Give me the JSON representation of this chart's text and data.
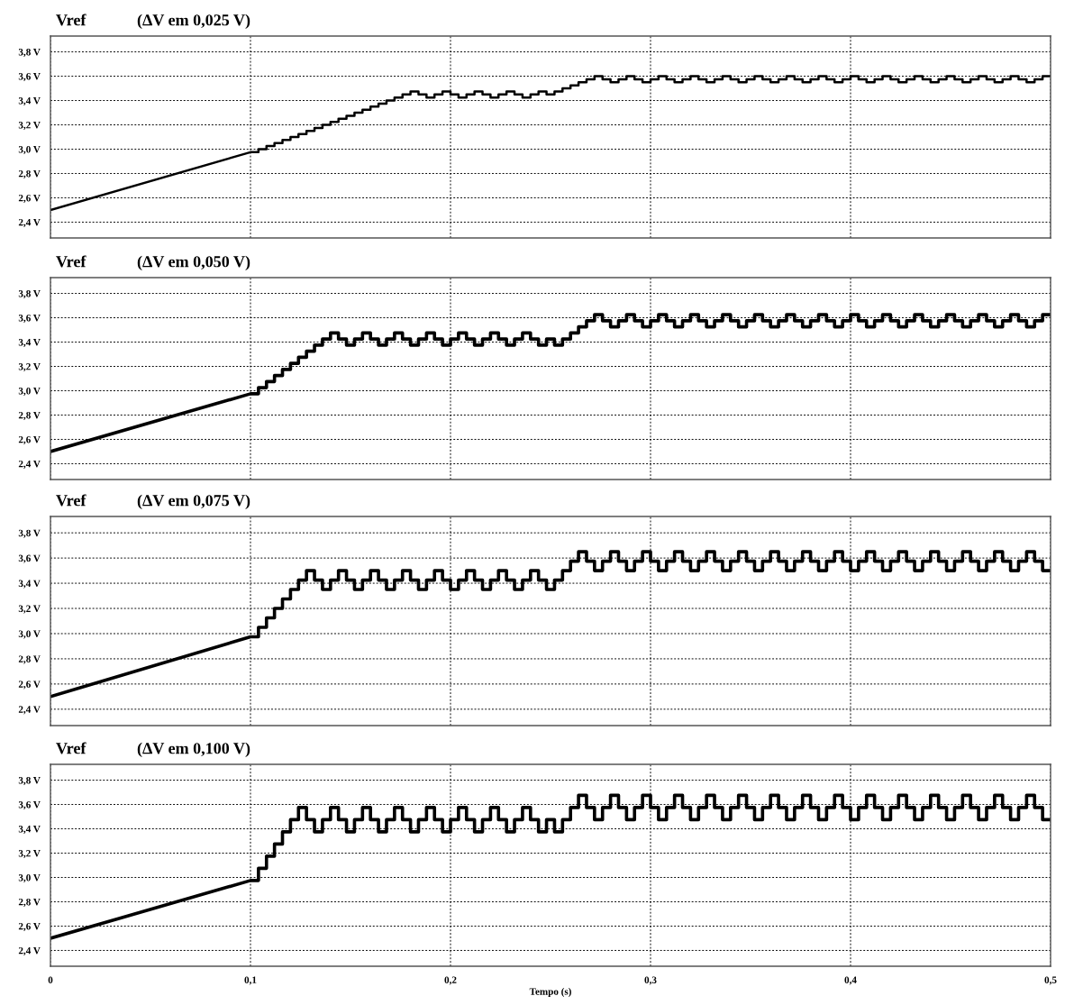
{
  "chart_data": [
    {
      "type": "line",
      "title": "Vref",
      "subtitle": "(ΔV em 0,025 V)",
      "xlim": [
        0,
        0.5
      ],
      "ylim": [
        2.27,
        3.93
      ],
      "grid": true,
      "tick_labels": "y",
      "xticks": [
        {
          "value": 0,
          "label": null
        },
        {
          "value": 0.1,
          "label": null
        },
        {
          "value": 0.2,
          "label": null
        },
        {
          "value": 0.3,
          "label": null
        },
        {
          "value": 0.4,
          "label": null
        },
        {
          "value": 0.5,
          "label": null
        }
      ],
      "yticks": [
        {
          "value": 2.4,
          "label": "2,4 V"
        },
        {
          "value": 2.6,
          "label": "2,6 V"
        },
        {
          "value": 2.8,
          "label": "2,8 V"
        },
        {
          "value": 3.0,
          "label": "3,0 V"
        },
        {
          "value": 3.2,
          "label": "3,2 V"
        },
        {
          "value": 3.4,
          "label": "3,4 V"
        },
        {
          "value": 3.6,
          "label": "3,6 V"
        },
        {
          "value": 3.8,
          "label": "3,8 V"
        }
      ],
      "x": [
        0,
        0.1,
        0.104,
        0.104,
        0.108,
        0.108,
        0.112,
        0.112,
        0.116,
        0.116,
        0.12,
        0.12,
        0.124,
        0.124,
        0.128,
        0.128,
        0.132,
        0.132,
        0.136,
        0.136,
        0.14,
        0.14,
        0.144,
        0.144,
        0.148,
        0.148,
        0.152,
        0.152,
        0.156,
        0.156,
        0.16,
        0.16,
        0.164,
        0.164,
        0.168,
        0.168,
        0.172,
        0.172,
        0.176,
        0.176,
        0.18,
        0.18,
        0.184,
        0.184,
        0.188,
        0.188,
        0.192,
        0.192,
        0.196,
        0.196,
        0.2,
        0.2,
        0.204,
        0.204,
        0.208,
        0.208,
        0.212,
        0.212,
        0.216,
        0.216,
        0.22,
        0.22,
        0.224,
        0.224,
        0.228,
        0.228,
        0.232,
        0.232,
        0.236,
        0.236,
        0.24,
        0.24,
        0.244,
        0.244,
        0.248,
        0.248,
        0.252,
        0.252,
        0.256,
        0.256,
        0.26,
        0.26,
        0.264,
        0.264,
        0.268,
        0.268,
        0.272,
        0.272,
        0.276,
        0.276,
        0.28,
        0.28,
        0.284,
        0.284,
        0.288,
        0.288,
        0.292,
        0.292,
        0.296,
        0.296,
        0.3,
        0.3,
        0.304,
        0.304,
        0.308,
        0.308,
        0.312,
        0.312,
        0.316,
        0.316,
        0.32,
        0.32,
        0.324,
        0.324,
        0.328,
        0.328,
        0.332,
        0.332,
        0.336,
        0.336,
        0.34,
        0.34,
        0.344,
        0.344,
        0.348,
        0.348,
        0.352,
        0.352,
        0.356,
        0.356,
        0.36,
        0.36,
        0.364,
        0.364,
        0.368,
        0.368,
        0.372,
        0.372,
        0.376,
        0.376,
        0.38,
        0.38,
        0.384,
        0.384,
        0.388,
        0.388,
        0.392,
        0.392,
        0.396,
        0.396,
        0.4,
        0.4,
        0.404,
        0.404,
        0.408,
        0.408,
        0.412,
        0.412,
        0.416,
        0.416,
        0.42,
        0.42,
        0.424,
        0.424,
        0.428,
        0.428,
        0.432,
        0.432,
        0.436,
        0.436,
        0.44,
        0.44,
        0.444,
        0.444,
        0.448,
        0.448,
        0.452,
        0.452,
        0.456,
        0.456,
        0.46,
        0.46,
        0.464,
        0.464,
        0.468,
        0.468,
        0.472,
        0.472,
        0.476,
        0.476,
        0.48,
        0.48,
        0.484,
        0.484,
        0.488,
        0.488,
        0.492,
        0.492,
        0.496,
        0.496,
        0.5
      ],
      "series": [
        {
          "color": "#000000",
          "values": [
            2.5,
            2.975,
            2.975,
            3.0,
            3.0,
            3.025,
            3.025,
            3.05,
            3.05,
            3.075,
            3.075,
            3.1,
            3.1,
            3.125,
            3.125,
            3.15,
            3.15,
            3.175,
            3.175,
            3.2,
            3.2,
            3.225,
            3.225,
            3.25,
            3.25,
            3.275,
            3.275,
            3.3,
            3.3,
            3.325,
            3.325,
            3.35,
            3.35,
            3.375,
            3.375,
            3.4,
            3.4,
            3.425,
            3.425,
            3.45,
            3.45,
            3.475,
            3.475,
            3.45,
            3.45,
            3.425,
            3.425,
            3.45,
            3.45,
            3.475,
            3.475,
            3.45,
            3.45,
            3.425,
            3.425,
            3.45,
            3.45,
            3.475,
            3.475,
            3.45,
            3.45,
            3.425,
            3.425,
            3.45,
            3.45,
            3.475,
            3.475,
            3.45,
            3.45,
            3.425,
            3.425,
            3.45,
            3.45,
            3.475,
            3.475,
            3.45,
            3.45,
            3.475,
            3.475,
            3.5,
            3.5,
            3.525,
            3.525,
            3.55,
            3.55,
            3.575,
            3.575,
            3.6,
            3.6,
            3.575,
            3.575,
            3.55,
            3.55,
            3.575,
            3.575,
            3.6,
            3.6,
            3.575,
            3.575,
            3.55,
            3.55,
            3.575,
            3.575,
            3.6,
            3.6,
            3.575,
            3.575,
            3.55,
            3.55,
            3.575,
            3.575,
            3.6,
            3.6,
            3.575,
            3.575,
            3.55,
            3.55,
            3.575,
            3.575,
            3.6,
            3.6,
            3.575,
            3.575,
            3.55,
            3.55,
            3.575,
            3.575,
            3.6,
            3.6,
            3.575,
            3.575,
            3.55,
            3.55,
            3.575,
            3.575,
            3.6,
            3.6,
            3.575,
            3.575,
            3.55,
            3.55,
            3.575,
            3.575,
            3.6,
            3.6,
            3.575,
            3.575,
            3.55,
            3.55,
            3.575,
            3.575,
            3.6,
            3.6,
            3.575,
            3.575,
            3.55,
            3.55,
            3.575,
            3.575,
            3.6,
            3.6,
            3.575,
            3.575,
            3.55,
            3.55,
            3.575,
            3.575,
            3.6,
            3.6,
            3.575,
            3.575,
            3.55,
            3.55,
            3.575,
            3.575,
            3.6,
            3.6,
            3.575,
            3.575,
            3.55,
            3.55,
            3.575,
            3.575,
            3.6,
            3.6,
            3.575,
            3.575,
            3.55,
            3.55,
            3.575,
            3.575,
            3.6,
            3.6,
            3.575,
            3.575,
            3.55,
            3.55,
            3.575,
            3.575,
            3.6,
            3.6
          ]
        }
      ]
    },
    {
      "type": "line",
      "title": "Vref",
      "subtitle": "(ΔV em 0,050 V)",
      "xlim": [
        0,
        0.5
      ],
      "ylim": [
        2.27,
        3.93
      ],
      "grid": true,
      "tick_labels": "y",
      "xticks": [
        {
          "value": 0,
          "label": null
        },
        {
          "value": 0.1,
          "label": null
        },
        {
          "value": 0.2,
          "label": null
        },
        {
          "value": 0.3,
          "label": null
        },
        {
          "value": 0.4,
          "label": null
        },
        {
          "value": 0.5,
          "label": null
        }
      ],
      "yticks": [
        {
          "value": 2.4,
          "label": "2,4 V"
        },
        {
          "value": 2.6,
          "label": "2,6 V"
        },
        {
          "value": 2.8,
          "label": "2,8 V"
        },
        {
          "value": 3.0,
          "label": "3,0 V"
        },
        {
          "value": 3.2,
          "label": "3,2 V"
        },
        {
          "value": 3.4,
          "label": "3,4 V"
        },
        {
          "value": 3.6,
          "label": "3,6 V"
        },
        {
          "value": 3.8,
          "label": "3,8 V"
        }
      ],
      "x": [
        0,
        0.1,
        0.104,
        0.104,
        0.108,
        0.108,
        0.112,
        0.112,
        0.116,
        0.116,
        0.12,
        0.12,
        0.124,
        0.124,
        0.128,
        0.128,
        0.132,
        0.132,
        0.136,
        0.136,
        0.14,
        0.14,
        0.144,
        0.144,
        0.148,
        0.148,
        0.152,
        0.152,
        0.156,
        0.156,
        0.16,
        0.16,
        0.164,
        0.164,
        0.168,
        0.168,
        0.172,
        0.172,
        0.176,
        0.176,
        0.18,
        0.18,
        0.184,
        0.184,
        0.188,
        0.188,
        0.192,
        0.192,
        0.196,
        0.196,
        0.2,
        0.2,
        0.204,
        0.204,
        0.208,
        0.208,
        0.212,
        0.212,
        0.216,
        0.216,
        0.22,
        0.22,
        0.224,
        0.224,
        0.228,
        0.228,
        0.232,
        0.232,
        0.236,
        0.236,
        0.24,
        0.24,
        0.244,
        0.244,
        0.248,
        0.248,
        0.252,
        0.252,
        0.256,
        0.256,
        0.26,
        0.26,
        0.264,
        0.264,
        0.268,
        0.268,
        0.272,
        0.272,
        0.276,
        0.276,
        0.28,
        0.28,
        0.284,
        0.284,
        0.288,
        0.288,
        0.292,
        0.292,
        0.296,
        0.296,
        0.3,
        0.3,
        0.304,
        0.304,
        0.308,
        0.308,
        0.312,
        0.312,
        0.316,
        0.316,
        0.32,
        0.32,
        0.324,
        0.324,
        0.328,
        0.328,
        0.332,
        0.332,
        0.336,
        0.336,
        0.34,
        0.34,
        0.344,
        0.344,
        0.348,
        0.348,
        0.352,
        0.352,
        0.356,
        0.356,
        0.36,
        0.36,
        0.364,
        0.364,
        0.368,
        0.368,
        0.372,
        0.372,
        0.376,
        0.376,
        0.38,
        0.38,
        0.384,
        0.384,
        0.388,
        0.388,
        0.392,
        0.392,
        0.396,
        0.396,
        0.4,
        0.4,
        0.404,
        0.404,
        0.408,
        0.408,
        0.412,
        0.412,
        0.416,
        0.416,
        0.42,
        0.42,
        0.424,
        0.424,
        0.428,
        0.428,
        0.432,
        0.432,
        0.436,
        0.436,
        0.44,
        0.44,
        0.444,
        0.444,
        0.448,
        0.448,
        0.452,
        0.452,
        0.456,
        0.456,
        0.46,
        0.46,
        0.464,
        0.464,
        0.468,
        0.468,
        0.472,
        0.472,
        0.476,
        0.476,
        0.48,
        0.48,
        0.484,
        0.484,
        0.488,
        0.488,
        0.492,
        0.492,
        0.496,
        0.496,
        0.5
      ],
      "series": [
        {
          "color": "#000000",
          "values": [
            2.5,
            2.975,
            2.975,
            3.025,
            3.025,
            3.075,
            3.075,
            3.125,
            3.125,
            3.175,
            3.175,
            3.225,
            3.225,
            3.275,
            3.275,
            3.325,
            3.325,
            3.375,
            3.375,
            3.425,
            3.425,
            3.475,
            3.475,
            3.425,
            3.425,
            3.375,
            3.375,
            3.425,
            3.425,
            3.475,
            3.475,
            3.425,
            3.425,
            3.375,
            3.375,
            3.425,
            3.425,
            3.475,
            3.475,
            3.425,
            3.425,
            3.375,
            3.375,
            3.425,
            3.425,
            3.475,
            3.475,
            3.425,
            3.425,
            3.375,
            3.375,
            3.425,
            3.425,
            3.475,
            3.475,
            3.425,
            3.425,
            3.375,
            3.375,
            3.425,
            3.425,
            3.475,
            3.475,
            3.425,
            3.425,
            3.375,
            3.375,
            3.425,
            3.425,
            3.475,
            3.475,
            3.425,
            3.425,
            3.375,
            3.375,
            3.425,
            3.425,
            3.375,
            3.375,
            3.425,
            3.425,
            3.475,
            3.475,
            3.525,
            3.525,
            3.575,
            3.575,
            3.625,
            3.625,
            3.575,
            3.575,
            3.525,
            3.525,
            3.575,
            3.575,
            3.625,
            3.625,
            3.575,
            3.575,
            3.525,
            3.525,
            3.575,
            3.575,
            3.625,
            3.625,
            3.575,
            3.575,
            3.525,
            3.525,
            3.575,
            3.575,
            3.625,
            3.625,
            3.575,
            3.575,
            3.525,
            3.525,
            3.575,
            3.575,
            3.625,
            3.625,
            3.575,
            3.575,
            3.525,
            3.525,
            3.575,
            3.575,
            3.625,
            3.625,
            3.575,
            3.575,
            3.525,
            3.525,
            3.575,
            3.575,
            3.625,
            3.625,
            3.575,
            3.575,
            3.525,
            3.525,
            3.575,
            3.575,
            3.625,
            3.625,
            3.575,
            3.575,
            3.525,
            3.525,
            3.575,
            3.575,
            3.625,
            3.625,
            3.575,
            3.575,
            3.525,
            3.525,
            3.575,
            3.575,
            3.625,
            3.625,
            3.575,
            3.575,
            3.525,
            3.525,
            3.575,
            3.575,
            3.625,
            3.625,
            3.575,
            3.575,
            3.525,
            3.525,
            3.575,
            3.575,
            3.625,
            3.625,
            3.575,
            3.575,
            3.525,
            3.525,
            3.575,
            3.575,
            3.625,
            3.625,
            3.575,
            3.575,
            3.525,
            3.525,
            3.575,
            3.575,
            3.625,
            3.625,
            3.575,
            3.575,
            3.525,
            3.525,
            3.575,
            3.575,
            3.625,
            3.625
          ]
        }
      ]
    },
    {
      "type": "line",
      "title": "Vref",
      "subtitle": "(ΔV em 0,075 V)",
      "xlim": [
        0,
        0.5
      ],
      "ylim": [
        2.27,
        3.93
      ],
      "grid": true,
      "tick_labels": "y",
      "xticks": [
        {
          "value": 0,
          "label": null
        },
        {
          "value": 0.1,
          "label": null
        },
        {
          "value": 0.2,
          "label": null
        },
        {
          "value": 0.3,
          "label": null
        },
        {
          "value": 0.4,
          "label": null
        },
        {
          "value": 0.5,
          "label": null
        }
      ],
      "yticks": [
        {
          "value": 2.4,
          "label": "2,4 V"
        },
        {
          "value": 2.6,
          "label": "2,6 V"
        },
        {
          "value": 2.8,
          "label": "2,8 V"
        },
        {
          "value": 3.0,
          "label": "3,0 V"
        },
        {
          "value": 3.2,
          "label": "3,2 V"
        },
        {
          "value": 3.4,
          "label": "3,4 V"
        },
        {
          "value": 3.6,
          "label": "3,6 V"
        },
        {
          "value": 3.8,
          "label": "3,8 V"
        }
      ],
      "x": [
        0,
        0.1,
        0.104,
        0.104,
        0.108,
        0.108,
        0.112,
        0.112,
        0.116,
        0.116,
        0.12,
        0.12,
        0.124,
        0.124,
        0.128,
        0.128,
        0.132,
        0.132,
        0.136,
        0.136,
        0.14,
        0.14,
        0.144,
        0.144,
        0.148,
        0.148,
        0.152,
        0.152,
        0.156,
        0.156,
        0.16,
        0.16,
        0.164,
        0.164,
        0.168,
        0.168,
        0.172,
        0.172,
        0.176,
        0.176,
        0.18,
        0.18,
        0.184,
        0.184,
        0.188,
        0.188,
        0.192,
        0.192,
        0.196,
        0.196,
        0.2,
        0.2,
        0.204,
        0.204,
        0.208,
        0.208,
        0.212,
        0.212,
        0.216,
        0.216,
        0.22,
        0.22,
        0.224,
        0.224,
        0.228,
        0.228,
        0.232,
        0.232,
        0.236,
        0.236,
        0.24,
        0.24,
        0.244,
        0.244,
        0.248,
        0.248,
        0.252,
        0.252,
        0.256,
        0.256,
        0.26,
        0.26,
        0.264,
        0.264,
        0.268,
        0.268,
        0.272,
        0.272,
        0.276,
        0.276,
        0.28,
        0.28,
        0.284,
        0.284,
        0.288,
        0.288,
        0.292,
        0.292,
        0.296,
        0.296,
        0.3,
        0.3,
        0.304,
        0.304,
        0.308,
        0.308,
        0.312,
        0.312,
        0.316,
        0.316,
        0.32,
        0.32,
        0.324,
        0.324,
        0.328,
        0.328,
        0.332,
        0.332,
        0.336,
        0.336,
        0.34,
        0.34,
        0.344,
        0.344,
        0.348,
        0.348,
        0.352,
        0.352,
        0.356,
        0.356,
        0.36,
        0.36,
        0.364,
        0.364,
        0.368,
        0.368,
        0.372,
        0.372,
        0.376,
        0.376,
        0.38,
        0.38,
        0.384,
        0.384,
        0.388,
        0.388,
        0.392,
        0.392,
        0.396,
        0.396,
        0.4,
        0.4,
        0.404,
        0.404,
        0.408,
        0.408,
        0.412,
        0.412,
        0.416,
        0.416,
        0.42,
        0.42,
        0.424,
        0.424,
        0.428,
        0.428,
        0.432,
        0.432,
        0.436,
        0.436,
        0.44,
        0.44,
        0.444,
        0.444,
        0.448,
        0.448,
        0.452,
        0.452,
        0.456,
        0.456,
        0.46,
        0.46,
        0.464,
        0.464,
        0.468,
        0.468,
        0.472,
        0.472,
        0.476,
        0.476,
        0.48,
        0.48,
        0.484,
        0.484,
        0.488,
        0.488,
        0.492,
        0.492,
        0.496,
        0.496,
        0.5
      ],
      "series": [
        {
          "color": "#000000",
          "values": [
            2.5,
            2.975,
            2.975,
            3.05,
            3.05,
            3.125,
            3.125,
            3.2,
            3.2,
            3.275,
            3.275,
            3.35,
            3.35,
            3.425,
            3.425,
            3.5,
            3.5,
            3.425,
            3.425,
            3.35,
            3.35,
            3.425,
            3.425,
            3.5,
            3.5,
            3.425,
            3.425,
            3.35,
            3.35,
            3.425,
            3.425,
            3.5,
            3.5,
            3.425,
            3.425,
            3.35,
            3.35,
            3.425,
            3.425,
            3.5,
            3.5,
            3.425,
            3.425,
            3.35,
            3.35,
            3.425,
            3.425,
            3.5,
            3.5,
            3.425,
            3.425,
            3.35,
            3.35,
            3.425,
            3.425,
            3.5,
            3.5,
            3.425,
            3.425,
            3.35,
            3.35,
            3.425,
            3.425,
            3.5,
            3.5,
            3.425,
            3.425,
            3.35,
            3.35,
            3.425,
            3.425,
            3.5,
            3.5,
            3.425,
            3.425,
            3.35,
            3.35,
            3.425,
            3.425,
            3.5,
            3.5,
            3.575,
            3.575,
            3.65,
            3.65,
            3.575,
            3.575,
            3.5,
            3.5,
            3.575,
            3.575,
            3.65,
            3.65,
            3.575,
            3.575,
            3.5,
            3.5,
            3.575,
            3.575,
            3.65,
            3.65,
            3.575,
            3.575,
            3.5,
            3.5,
            3.575,
            3.575,
            3.65,
            3.65,
            3.575,
            3.575,
            3.5,
            3.5,
            3.575,
            3.575,
            3.65,
            3.65,
            3.575,
            3.575,
            3.5,
            3.5,
            3.575,
            3.575,
            3.65,
            3.65,
            3.575,
            3.575,
            3.5,
            3.5,
            3.575,
            3.575,
            3.65,
            3.65,
            3.575,
            3.575,
            3.5,
            3.5,
            3.575,
            3.575,
            3.65,
            3.65,
            3.575,
            3.575,
            3.5,
            3.5,
            3.575,
            3.575,
            3.65,
            3.65,
            3.575,
            3.575,
            3.5,
            3.5,
            3.575,
            3.575,
            3.65,
            3.65,
            3.575,
            3.575,
            3.5,
            3.5,
            3.575,
            3.575,
            3.65,
            3.65,
            3.575,
            3.575,
            3.5,
            3.5,
            3.575,
            3.575,
            3.65,
            3.65,
            3.575,
            3.575,
            3.5,
            3.5,
            3.575,
            3.575,
            3.65,
            3.65,
            3.575,
            3.575,
            3.5,
            3.5,
            3.575,
            3.575,
            3.65,
            3.65,
            3.575,
            3.575,
            3.5,
            3.5,
            3.575,
            3.575,
            3.65,
            3.65,
            3.575,
            3.575,
            3.5,
            3.5
          ]
        }
      ]
    },
    {
      "type": "line",
      "title": "Vref",
      "subtitle": "(ΔV em 0,100 V)",
      "xlabel": "Tempo (s)",
      "xlim": [
        0,
        0.5
      ],
      "ylim": [
        2.27,
        3.93
      ],
      "grid": true,
      "xticks": [
        {
          "value": 0,
          "label": "0"
        },
        {
          "value": 0.1,
          "label": "0,1"
        },
        {
          "value": 0.2,
          "label": "0,2"
        },
        {
          "value": 0.3,
          "label": "0,3"
        },
        {
          "value": 0.4,
          "label": "0,4"
        },
        {
          "value": 0.5,
          "label": "0,5"
        }
      ],
      "yticks": [
        {
          "value": 2.4,
          "label": "2,4 V"
        },
        {
          "value": 2.6,
          "label": "2,6 V"
        },
        {
          "value": 2.8,
          "label": "2,8 V"
        },
        {
          "value": 3.0,
          "label": "3,0 V"
        },
        {
          "value": 3.2,
          "label": "3,2 V"
        },
        {
          "value": 3.4,
          "label": "3,4 V"
        },
        {
          "value": 3.6,
          "label": "3,6 V"
        },
        {
          "value": 3.8,
          "label": "3,8 V"
        }
      ],
      "x": [
        0,
        0.1,
        0.104,
        0.104,
        0.108,
        0.108,
        0.112,
        0.112,
        0.116,
        0.116,
        0.12,
        0.12,
        0.124,
        0.124,
        0.128,
        0.128,
        0.132,
        0.132,
        0.136,
        0.136,
        0.14,
        0.14,
        0.144,
        0.144,
        0.148,
        0.148,
        0.152,
        0.152,
        0.156,
        0.156,
        0.16,
        0.16,
        0.164,
        0.164,
        0.168,
        0.168,
        0.172,
        0.172,
        0.176,
        0.176,
        0.18,
        0.18,
        0.184,
        0.184,
        0.188,
        0.188,
        0.192,
        0.192,
        0.196,
        0.196,
        0.2,
        0.2,
        0.204,
        0.204,
        0.208,
        0.208,
        0.212,
        0.212,
        0.216,
        0.216,
        0.22,
        0.22,
        0.224,
        0.224,
        0.228,
        0.228,
        0.232,
        0.232,
        0.236,
        0.236,
        0.24,
        0.24,
        0.244,
        0.244,
        0.248,
        0.248,
        0.252,
        0.252,
        0.256,
        0.256,
        0.26,
        0.26,
        0.264,
        0.264,
        0.268,
        0.268,
        0.272,
        0.272,
        0.276,
        0.276,
        0.28,
        0.28,
        0.284,
        0.284,
        0.288,
        0.288,
        0.292,
        0.292,
        0.296,
        0.296,
        0.3,
        0.3,
        0.304,
        0.304,
        0.308,
        0.308,
        0.312,
        0.312,
        0.316,
        0.316,
        0.32,
        0.32,
        0.324,
        0.324,
        0.328,
        0.328,
        0.332,
        0.332,
        0.336,
        0.336,
        0.34,
        0.34,
        0.344,
        0.344,
        0.348,
        0.348,
        0.352,
        0.352,
        0.356,
        0.356,
        0.36,
        0.36,
        0.364,
        0.364,
        0.368,
        0.368,
        0.372,
        0.372,
        0.376,
        0.376,
        0.38,
        0.38,
        0.384,
        0.384,
        0.388,
        0.388,
        0.392,
        0.392,
        0.396,
        0.396,
        0.4,
        0.4,
        0.404,
        0.404,
        0.408,
        0.408,
        0.412,
        0.412,
        0.416,
        0.416,
        0.42,
        0.42,
        0.424,
        0.424,
        0.428,
        0.428,
        0.432,
        0.432,
        0.436,
        0.436,
        0.44,
        0.44,
        0.444,
        0.444,
        0.448,
        0.448,
        0.452,
        0.452,
        0.456,
        0.456,
        0.46,
        0.46,
        0.464,
        0.464,
        0.468,
        0.468,
        0.472,
        0.472,
        0.476,
        0.476,
        0.48,
        0.48,
        0.484,
        0.484,
        0.488,
        0.488,
        0.492,
        0.492,
        0.496,
        0.496,
        0.5
      ],
      "series": [
        {
          "color": "#000000",
          "values": [
            2.5,
            2.975,
            2.975,
            3.075,
            3.075,
            3.175,
            3.175,
            3.275,
            3.275,
            3.375,
            3.375,
            3.475,
            3.475,
            3.575,
            3.575,
            3.475,
            3.475,
            3.375,
            3.375,
            3.475,
            3.475,
            3.575,
            3.575,
            3.475,
            3.475,
            3.375,
            3.375,
            3.475,
            3.475,
            3.575,
            3.575,
            3.475,
            3.475,
            3.375,
            3.375,
            3.475,
            3.475,
            3.575,
            3.575,
            3.475,
            3.475,
            3.375,
            3.375,
            3.475,
            3.475,
            3.575,
            3.575,
            3.475,
            3.475,
            3.375,
            3.375,
            3.475,
            3.475,
            3.575,
            3.575,
            3.475,
            3.475,
            3.375,
            3.375,
            3.475,
            3.475,
            3.575,
            3.575,
            3.475,
            3.475,
            3.375,
            3.375,
            3.475,
            3.475,
            3.575,
            3.575,
            3.475,
            3.475,
            3.375,
            3.375,
            3.475,
            3.475,
            3.375,
            3.375,
            3.475,
            3.475,
            3.575,
            3.575,
            3.675,
            3.675,
            3.575,
            3.575,
            3.475,
            3.475,
            3.575,
            3.575,
            3.675,
            3.675,
            3.575,
            3.575,
            3.475,
            3.475,
            3.575,
            3.575,
            3.675,
            3.675,
            3.575,
            3.575,
            3.475,
            3.475,
            3.575,
            3.575,
            3.675,
            3.675,
            3.575,
            3.575,
            3.475,
            3.475,
            3.575,
            3.575,
            3.675,
            3.675,
            3.575,
            3.575,
            3.475,
            3.475,
            3.575,
            3.575,
            3.675,
            3.675,
            3.575,
            3.575,
            3.475,
            3.475,
            3.575,
            3.575,
            3.675,
            3.675,
            3.575,
            3.575,
            3.475,
            3.475,
            3.575,
            3.575,
            3.675,
            3.675,
            3.575,
            3.575,
            3.475,
            3.475,
            3.575,
            3.575,
            3.675,
            3.675,
            3.575,
            3.575,
            3.475,
            3.475,
            3.575,
            3.575,
            3.675,
            3.675,
            3.575,
            3.575,
            3.475,
            3.475,
            3.575,
            3.575,
            3.675,
            3.675,
            3.575,
            3.575,
            3.475,
            3.475,
            3.575,
            3.575,
            3.675,
            3.675,
            3.575,
            3.575,
            3.475,
            3.475,
            3.575,
            3.575,
            3.675,
            3.675,
            3.575,
            3.575,
            3.475,
            3.475,
            3.575,
            3.575,
            3.675,
            3.675,
            3.575,
            3.575,
            3.475,
            3.475,
            3.575,
            3.575,
            3.675,
            3.675,
            3.575,
            3.575,
            3.475,
            3.475
          ]
        }
      ]
    }
  ]
}
